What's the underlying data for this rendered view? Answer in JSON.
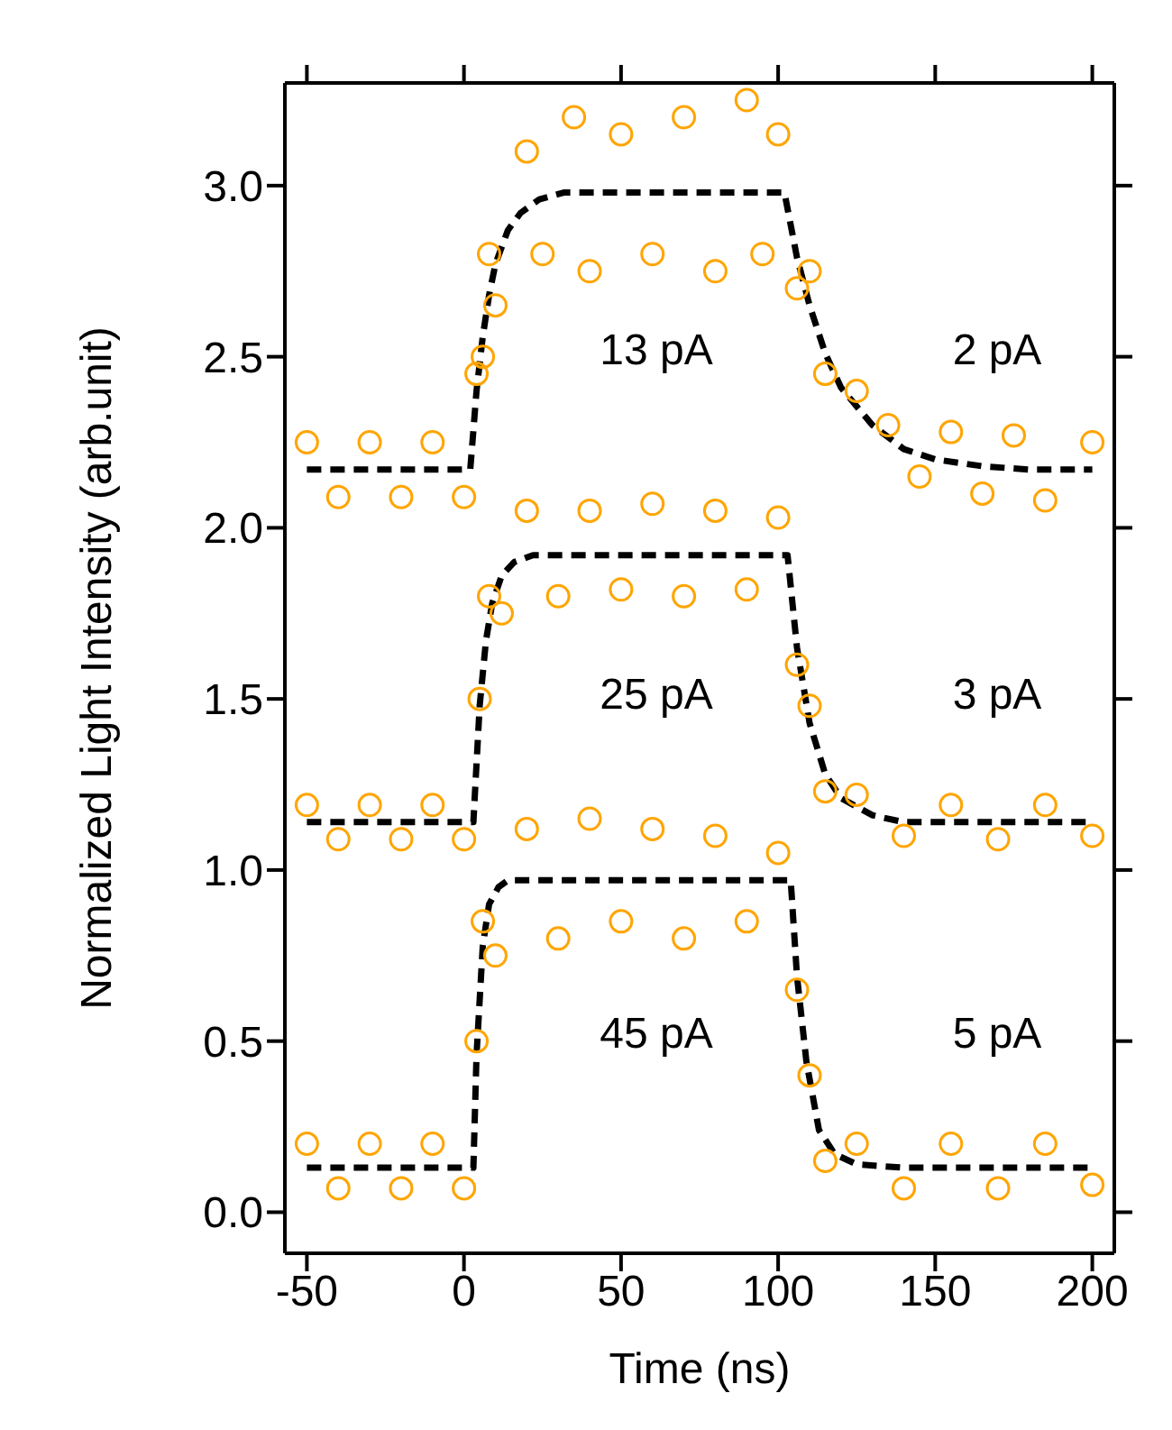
{
  "chart_data": {
    "type": "scatter",
    "xlabel": "Time (ns)",
    "ylabel": "Normalized Light Intensity (arb.unit)",
    "xlim": [
      -57,
      207
    ],
    "xticks": [
      -50,
      0,
      50,
      100,
      150,
      200
    ],
    "ylim": [
      -0.12,
      3.3
    ],
    "yticks": [
      {
        "value": 0,
        "label": "0.0"
      },
      {
        "value": 0.5,
        "label": "0.5"
      },
      {
        "value": 1,
        "label": "1.0"
      },
      {
        "value": 1.5,
        "label": "1.5"
      },
      {
        "value": 2,
        "label": "2.0"
      },
      {
        "value": 2.5,
        "label": "2.5"
      },
      {
        "value": 3,
        "label": "3.0"
      }
    ],
    "grid": false,
    "legend": false,
    "series": [
      {
        "marker": "circle",
        "color": "#ffa500",
        "x": [
          -50,
          -40,
          -30,
          -20,
          -10,
          0,
          4,
          6,
          8,
          10,
          20,
          25,
          35,
          40,
          50,
          60,
          70,
          80,
          90,
          95,
          100,
          106,
          110,
          115,
          125,
          135,
          145,
          155,
          165,
          175,
          185,
          200
        ],
        "values": [
          2.25,
          2.09,
          2.25,
          2.09,
          2.25,
          2.09,
          2.45,
          2.5,
          2.8,
          2.65,
          3.1,
          2.8,
          3.2,
          2.75,
          3.15,
          2.8,
          3.2,
          2.75,
          3.25,
          2.8,
          3.15,
          2.7,
          2.75,
          2.45,
          2.4,
          2.3,
          2.15,
          2.28,
          2.1,
          2.27,
          2.08,
          2.25
        ]
      },
      {
        "marker": "circle",
        "color": "#ffa500",
        "x": [
          -50,
          -40,
          -30,
          -20,
          -10,
          0,
          5,
          8,
          12,
          20,
          30,
          40,
          50,
          60,
          70,
          80,
          90,
          100,
          106,
          110,
          115,
          125,
          140,
          155,
          170,
          185,
          200
        ],
        "values": [
          1.19,
          1.09,
          1.19,
          1.09,
          1.19,
          1.09,
          1.5,
          1.8,
          1.75,
          2.05,
          1.8,
          2.05,
          1.82,
          2.07,
          1.8,
          2.05,
          1.82,
          2.03,
          1.6,
          1.48,
          1.23,
          1.22,
          1.1,
          1.19,
          1.09,
          1.19,
          1.1
        ]
      },
      {
        "marker": "circle",
        "color": "#ffa500",
        "x": [
          -50,
          -40,
          -30,
          -20,
          -10,
          0,
          4,
          6,
          10,
          20,
          30,
          40,
          50,
          60,
          70,
          80,
          90,
          100,
          106,
          110,
          115,
          125,
          140,
          155,
          170,
          185,
          200
        ],
        "values": [
          0.2,
          0.07,
          0.2,
          0.07,
          0.2,
          0.07,
          0.5,
          0.85,
          0.75,
          1.12,
          0.8,
          1.15,
          0.85,
          1.12,
          0.8,
          1.1,
          0.85,
          1.05,
          0.65,
          0.4,
          0.15,
          0.2,
          0.07,
          0.2,
          0.07,
          0.2,
          0.08
        ]
      },
      {
        "type": "line",
        "color": "#000000",
        "line_style": "dashed",
        "x": [
          -50,
          0,
          2,
          4,
          6,
          8,
          10,
          14,
          18,
          24,
          32,
          102,
          106,
          110,
          115,
          120,
          130,
          140,
          150,
          165,
          180,
          200
        ],
        "values": [
          2.17,
          2.17,
          2.17,
          2.4,
          2.56,
          2.68,
          2.77,
          2.87,
          2.92,
          2.96,
          2.98,
          2.98,
          2.79,
          2.65,
          2.51,
          2.41,
          2.3,
          2.23,
          2.2,
          2.18,
          2.17,
          2.17
        ]
      },
      {
        "type": "line",
        "color": "#000000",
        "line_style": "dashed",
        "x": [
          -50,
          3,
          5,
          7,
          9,
          12,
          16,
          22,
          103,
          106,
          110,
          115,
          120,
          130,
          140,
          200
        ],
        "values": [
          1.14,
          1.14,
          1.48,
          1.67,
          1.78,
          1.86,
          1.9,
          1.92,
          1.92,
          1.65,
          1.43,
          1.28,
          1.21,
          1.16,
          1.14,
          1.14
        ]
      },
      {
        "type": "line",
        "color": "#000000",
        "line_style": "dashed",
        "x": [
          -50,
          3,
          4,
          6,
          8,
          11,
          14,
          104,
          106,
          109,
          113,
          118,
          125,
          140,
          200
        ],
        "values": [
          0.13,
          0.13,
          0.46,
          0.78,
          0.9,
          0.95,
          0.97,
          0.97,
          0.69,
          0.44,
          0.24,
          0.17,
          0.14,
          0.13,
          0.13
        ]
      }
    ],
    "annotations": [
      "13 pA",
      "2 pA",
      "25 pA",
      "3 pA",
      "45 pA",
      "5 pA"
    ]
  }
}
